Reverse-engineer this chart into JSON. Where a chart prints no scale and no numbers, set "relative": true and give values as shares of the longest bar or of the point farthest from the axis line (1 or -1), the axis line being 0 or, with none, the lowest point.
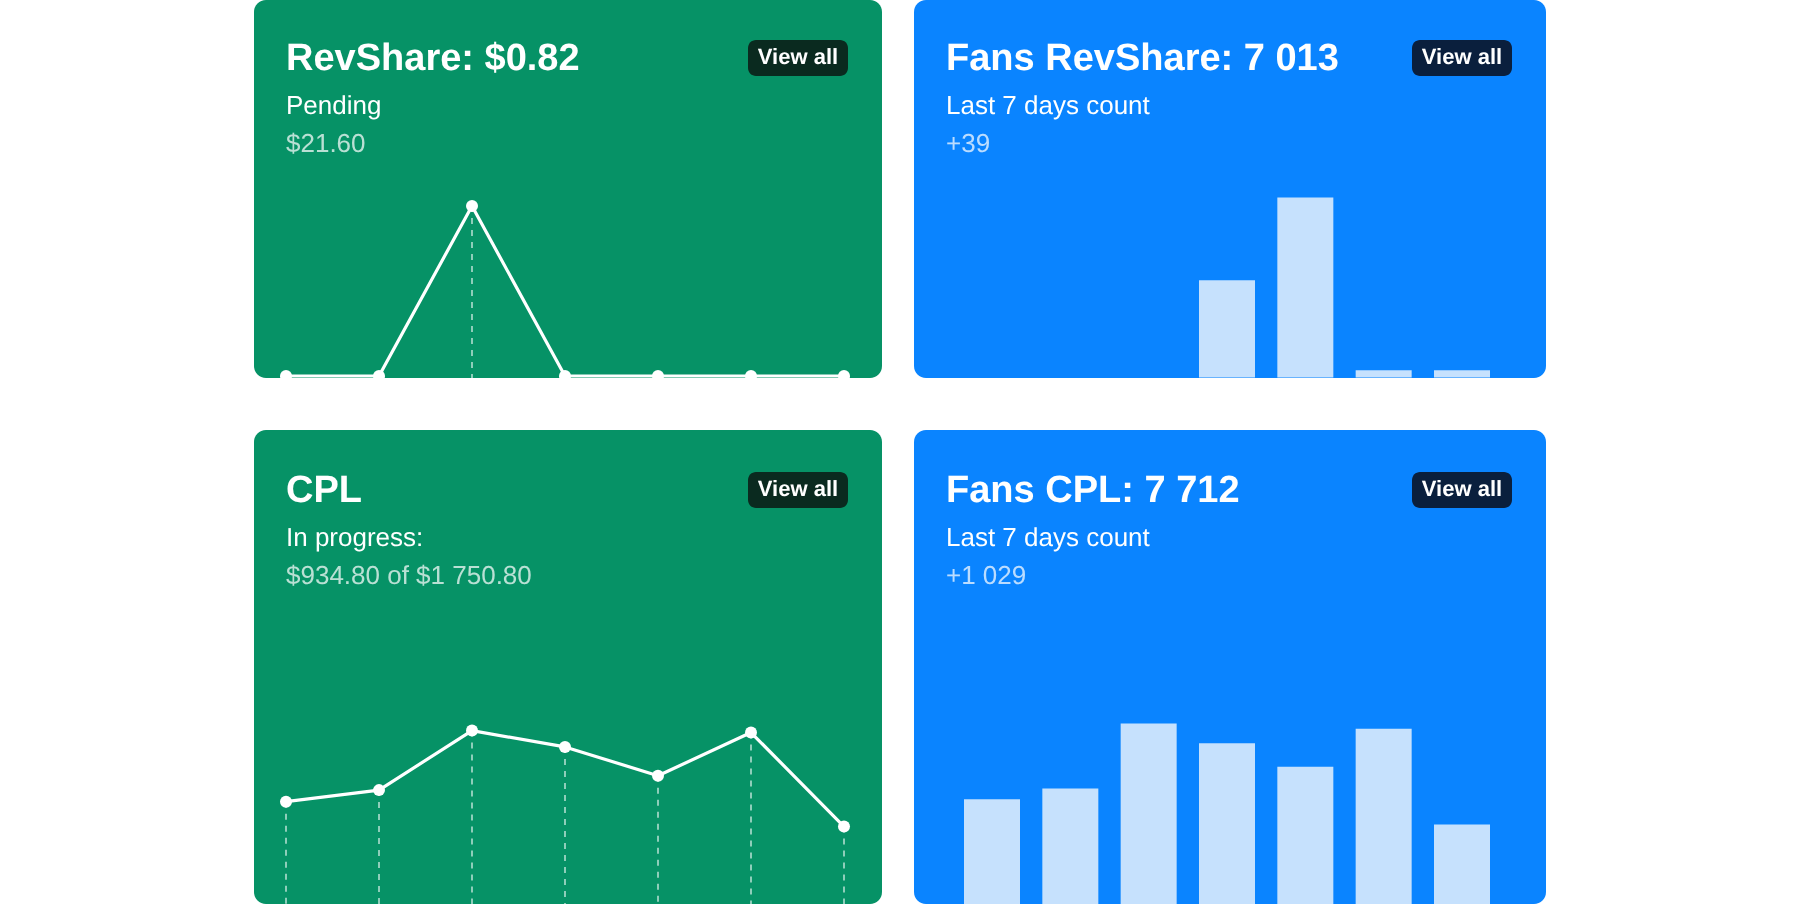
{
  "chart_data": [
    {
      "type": "line",
      "title": "RevShare: $0.82",
      "subtitle": "Pending",
      "annotations": [
        "$21.60",
        "View all"
      ],
      "categories": [
        null,
        null,
        null,
        null,
        null,
        null,
        null
      ],
      "relative": true,
      "marker": "circle",
      "grid": "x",
      "series": [
        {
          "color": "#ffffff",
          "values": [
            0,
            0,
            1,
            0,
            0,
            0,
            0
          ]
        }
      ]
    },
    {
      "type": "bar",
      "title": "Fans RevShare: 7 013",
      "subtitle": "Last 7 days count",
      "annotations": [
        "+39",
        "View all"
      ],
      "categories": [
        null,
        null,
        null,
        null,
        null,
        null,
        null
      ],
      "relative": true,
      "series": [
        {
          "color": "#c6e1fd",
          "values": [
            0,
            0,
            0,
            0.54,
            1,
            0.04,
            0.04
          ]
        }
      ]
    },
    {
      "type": "line",
      "title": "CPL",
      "subtitle": "In progress:",
      "annotations": [
        "$934.80 of $1 750.80",
        "View all"
      ],
      "categories": [
        null,
        null,
        null,
        null,
        null,
        null,
        null
      ],
      "relative": true,
      "marker": "circle",
      "grid": "x",
      "series": [
        {
          "color": "#ffffff",
          "values": [
            0.26,
            0.38,
            1,
            0.83,
            0.53,
            0.98,
            0
          ]
        }
      ]
    },
    {
      "type": "bar",
      "title": "Fans CPL: 7 712",
      "subtitle": "Last 7 days count",
      "annotations": [
        "+1 029",
        "View all"
      ],
      "categories": [
        null,
        null,
        null,
        null,
        null,
        null,
        null
      ],
      "relative": true,
      "series": [
        {
          "color": "#c6e1fd",
          "values": [
            0.58,
            0.64,
            1,
            0.89,
            0.76,
            0.97,
            0.44
          ]
        }
      ]
    }
  ]
}
